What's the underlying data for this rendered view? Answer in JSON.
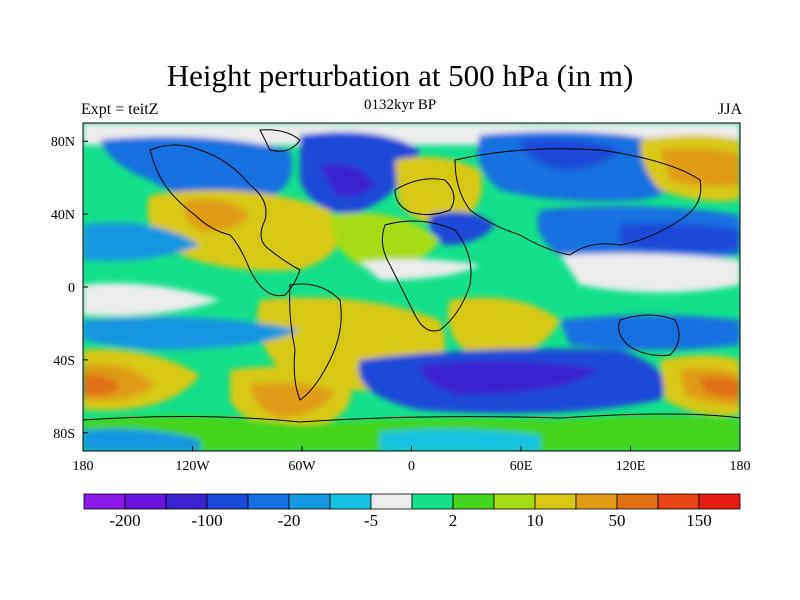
{
  "title": "Height perturbation at 500 hPa (in m)",
  "left_subtitle": "Expt = teitZ",
  "center_subtitle": "0132kyr BP",
  "right_subtitle": "JJA",
  "lon_ticks": [
    "180",
    "120W",
    "60W",
    "0",
    "60E",
    "120E",
    "180"
  ],
  "lat_ticks": [
    "80N",
    "40N",
    "0",
    "40S",
    "80S"
  ],
  "colorbar": {
    "colors": [
      "#8a18e8",
      "#6a14e0",
      "#3a22d0",
      "#1a48d8",
      "#1470e0",
      "#1496e0",
      "#14c2e0",
      "#ececec",
      "#14e08c",
      "#44d41e",
      "#a6dc14",
      "#d8c814",
      "#e09c14",
      "#e07014",
      "#e84414",
      "#e41c14"
    ],
    "labels": [
      {
        "text": "-200",
        "boundary": 1
      },
      {
        "text": "-100",
        "boundary": 3
      },
      {
        "text": "-20",
        "boundary": 5
      },
      {
        "text": "-5",
        "boundary": 7
      },
      {
        "text": "2",
        "boundary": 9
      },
      {
        "text": "10",
        "boundary": 11
      },
      {
        "text": "50",
        "boundary": 13
      },
      {
        "text": "150",
        "boundary": 15
      }
    ]
  },
  "field_colors": {
    "deep_blue": "#3a22d0",
    "blue": "#1a48d8",
    "mid_blue": "#1470e0",
    "light_blue": "#1496e0",
    "cyan": "#14c2e0",
    "gray": "#ececec",
    "teal_green": "#14e08c",
    "green": "#44d41e",
    "yellow_green": "#a6dc14",
    "mustard": "#d8c814",
    "orange": "#e09c14",
    "dark_orange": "#e07014",
    "red": "#e84414"
  }
}
